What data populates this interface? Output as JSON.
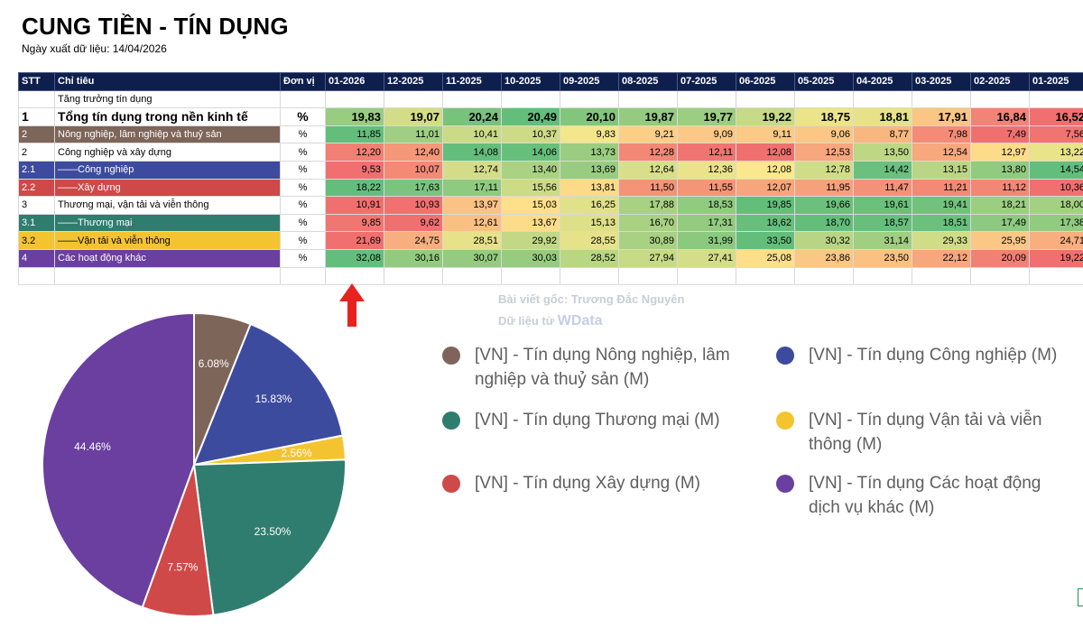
{
  "title": "CUNG TIỀN - TÍN DỤNG",
  "export_date": "Ngày xuất dữ liệu: 14/04/2026",
  "table": {
    "headers": [
      "STT",
      "Chỉ tiêu",
      "Đơn vị"
    ],
    "months": [
      "01-2026",
      "12-2025",
      "11-2025",
      "10-2025",
      "09-2025",
      "08-2025",
      "07-2025",
      "06-2025",
      "05-2025",
      "04-2025",
      "03-2025",
      "02-2025",
      "01-2025"
    ],
    "rows": [
      {
        "stt": "",
        "name": "Tăng trưởng tín dụng",
        "unit": "",
        "values": [],
        "label_color": ""
      },
      {
        "stt": "1",
        "name": "Tổng tín dụng trong nền kinh tế",
        "unit": "%",
        "values": [
          "19,83",
          "19,07",
          "20,24",
          "20,49",
          "20,10",
          "19,87",
          "19,77",
          "19,22",
          "18,75",
          "18,81",
          "17,91",
          "16,84",
          "16,52"
        ],
        "label_color": "",
        "total": true
      },
      {
        "stt": "2",
        "name": "Nông nghiệp, lâm nghiệp và thuỷ sản",
        "unit": "%",
        "values": [
          "11,85",
          "11,01",
          "10,41",
          "10,37",
          "9,83",
          "9,21",
          "9,09",
          "9,11",
          "9,06",
          "8,77",
          "7,98",
          "7,49",
          "7,56"
        ],
        "label_color": "#7d6559"
      },
      {
        "stt": "2",
        "name": "Công nghiệp và xây dựng",
        "unit": "%",
        "values": [
          "12,20",
          "12,40",
          "14,08",
          "14,06",
          "13,73",
          "12,28",
          "12,11",
          "12,08",
          "12,53",
          "13,50",
          "12,54",
          "12,97",
          "13,22"
        ],
        "label_color": ""
      },
      {
        "stt": "2.1",
        "name": "——Công nghiệp",
        "unit": "%",
        "values": [
          "9,53",
          "10,07",
          "12,74",
          "13,40",
          "13,69",
          "12,64",
          "12,36",
          "12,08",
          "12,78",
          "14,42",
          "13,15",
          "13,80",
          "14,54"
        ],
        "label_color": "#3d4b9e"
      },
      {
        "stt": "2.2",
        "name": "——Xây dựng",
        "unit": "%",
        "values": [
          "18,22",
          "17,63",
          "17,11",
          "15,56",
          "13,81",
          "11,50",
          "11,55",
          "12,07",
          "11,95",
          "11,47",
          "11,21",
          "11,12",
          "10,36"
        ],
        "label_color": "#cf4949"
      },
      {
        "stt": "3",
        "name": "Thương mại, vận tải và viễn thông",
        "unit": "%",
        "values": [
          "10,91",
          "10,93",
          "13,97",
          "15,03",
          "16,25",
          "17,88",
          "18,53",
          "19,85",
          "19,66",
          "19,61",
          "19,41",
          "18,21",
          "18,00"
        ],
        "label_color": ""
      },
      {
        "stt": "3.1",
        "name": "——Thương mại",
        "unit": "%",
        "values": [
          "9,85",
          "9,62",
          "12,61",
          "13,67",
          "15,13",
          "16,70",
          "17,31",
          "18,62",
          "18,70",
          "18,57",
          "18,51",
          "17,49",
          "17,38"
        ],
        "label_color": "#2e7d6e"
      },
      {
        "stt": "3.2",
        "name": "——Vận tải và viễn thông",
        "unit": "%",
        "values": [
          "21,69",
          "24,75",
          "28,51",
          "29,92",
          "28,55",
          "30,89",
          "31,99",
          "33,50",
          "30,32",
          "31,14",
          "29,33",
          "25,95",
          "24,71"
        ],
        "label_color": "#f4c430"
      },
      {
        "stt": "4",
        "name": "Các hoạt động khác",
        "unit": "%",
        "values": [
          "32,08",
          "30,16",
          "30,07",
          "30,03",
          "28,52",
          "27,94",
          "27,41",
          "25,08",
          "23,86",
          "23,50",
          "22,12",
          "20,09",
          "19,22"
        ],
        "label_color": "#6a3fa0"
      },
      {
        "stt": "",
        "name": "",
        "unit": "",
        "values": [],
        "label_color": ""
      }
    ]
  },
  "watermark": {
    "line1": "Bài viết gốc: Trương Đắc Nguyên",
    "line2": "Dữ liệu từ",
    "brand": "WData"
  },
  "chart_data": {
    "type": "pie",
    "title": "",
    "labels": [
      "[VN] - Tín dụng Nông nghiệp, lâm nghiệp và thuỷ sản (M)",
      "[VN] - Tín dụng Công nghiệp (M)",
      "[VN] - Tín dụng Vận tải và viễn thông (M)",
      "[VN] - Tín dụng Thương mại (M)",
      "[VN] - Tín dụng Xây dựng (M)",
      "[VN] - Tín dụng Các hoạt động dịch vụ khác (M)"
    ],
    "values": [
      6.08,
      15.83,
      2.56,
      23.5,
      7.57,
      44.46
    ],
    "value_labels": [
      "6.08%",
      "15.83%",
      "2.56%",
      "23.50%",
      "7.57%",
      "44.46%"
    ],
    "colors": [
      "#7d6559",
      "#3d4b9e",
      "#f4c430",
      "#2e7d6e",
      "#cf4949",
      "#6a3fa0"
    ],
    "start_angle": "12 o'clock, clockwise",
    "legend_position": "right"
  },
  "legend_order": [
    0,
    1,
    3,
    2,
    4,
    5
  ]
}
